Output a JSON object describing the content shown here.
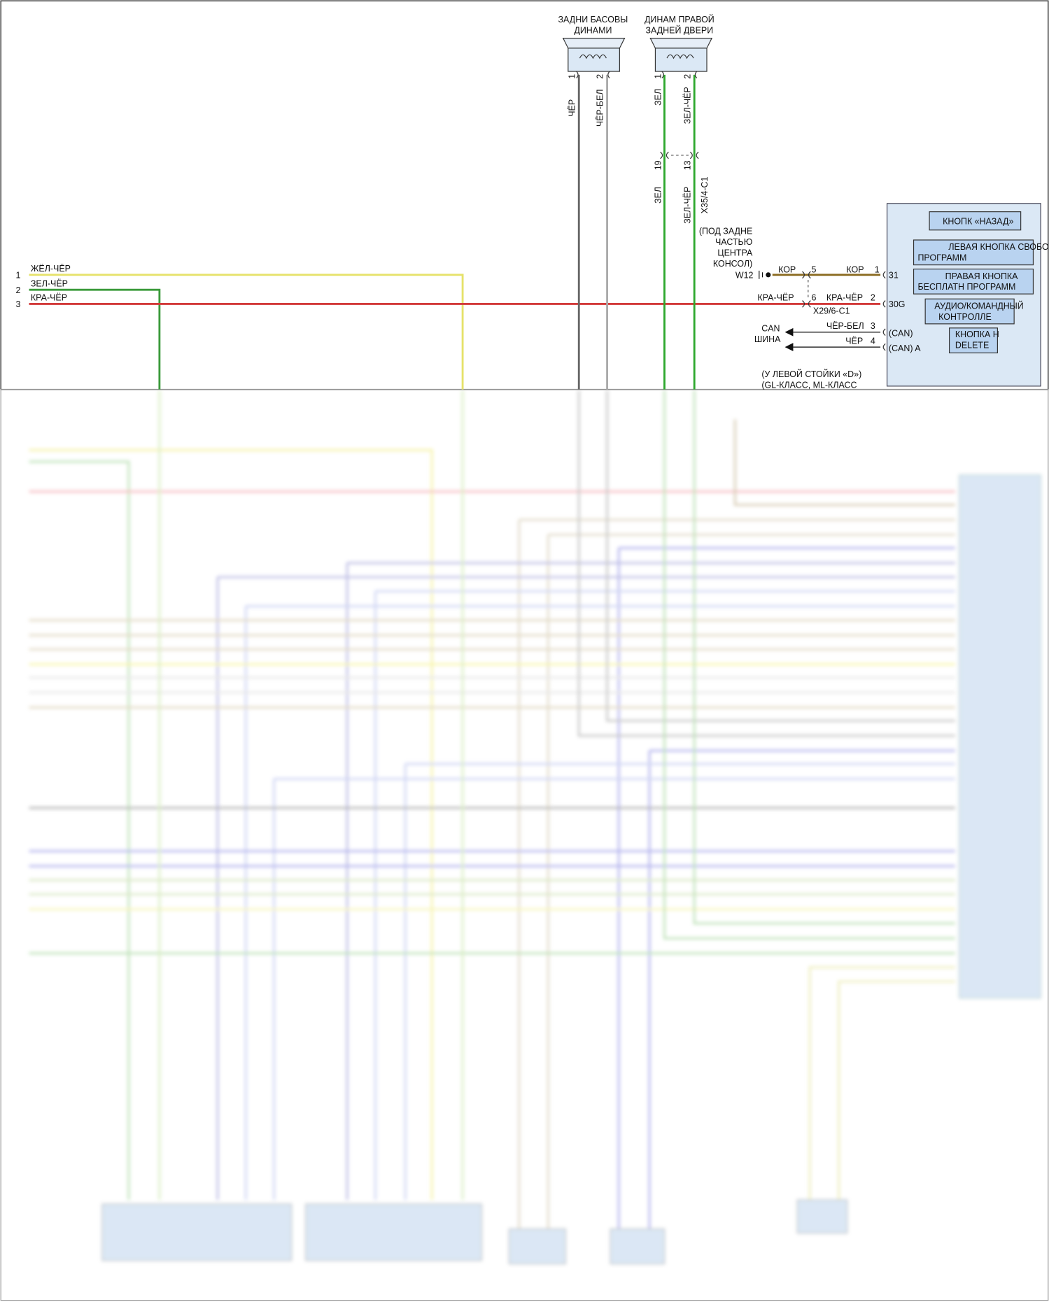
{
  "speakers": [
    {
      "title": [
        "ЗАДНИ БАСОВЫ",
        "ДИНАМИ"
      ],
      "pins": [
        "1",
        "2"
      ],
      "wires": [
        "ЧЁР",
        "ЧЁР-БЕЛ"
      ]
    },
    {
      "title": [
        "ДИНАМ ПРАВОЙ",
        "ЗАДНЕЙ ДВЕРИ"
      ],
      "pins": [
        "1",
        "2"
      ],
      "wires": [
        "ЗЕЛ",
        "ЗЕЛ-ЧЁР"
      ]
    }
  ],
  "connector_x35": {
    "name": "X35/4-C1",
    "pins": [
      "19",
      "13"
    ],
    "wires": [
      "ЗЕЛ",
      "ЗЕЛ-ЧЁР"
    ]
  },
  "left_wires": [
    {
      "pin": "1",
      "label": "ЖЁЛ-ЧЁР"
    },
    {
      "pin": "2",
      "label": "ЗЕЛ-ЧЁР"
    },
    {
      "pin": "3",
      "label": "КРА-ЧЁР"
    }
  ],
  "ground": {
    "note": [
      "(ПОД ЗАДНЕ",
      "ЧАСТЬЮ",
      "ЦЕНТРА",
      "КОНСОЛ)"
    ],
    "name": "W12"
  },
  "connector_x29": {
    "name": "X29/6-C1",
    "rows": [
      {
        "wire_in": "КОР",
        "pin_in": "5",
        "wire_out": "КОР",
        "pin_out": "1",
        "terminal": "31"
      },
      {
        "wire_in": "КРА-ЧЁР",
        "pin_in": "6",
        "wire_out": "КРА-ЧЁР",
        "pin_out": "2",
        "terminal": "30G"
      }
    ]
  },
  "can": {
    "label": [
      "CAN",
      "ШИНА"
    ],
    "rows": [
      {
        "wire": "ЧЁР-БЕЛ",
        "pin": "3",
        "terminal": "(CAN)"
      },
      {
        "wire": "ЧЁР",
        "pin": "4",
        "terminal": "(CAN) A"
      }
    ]
  },
  "location_note": [
    "(У ЛЕВОЙ СТОЙКИ «D»)",
    "(GL-КЛАСС, ML-КЛАСС"
  ],
  "module_buttons": [
    [
      "КНОПК «НАЗАД»"
    ],
    [
      "ЛЕВАЯ КНОПКА СВОБО",
      "ПРОГРАММ"
    ],
    [
      "ПРАВАЯ КНОПКА",
      "БЕСПЛАТН ПРОГРАММ"
    ],
    [
      "АУДИО/КОМАНДНЫЙ",
      "КОНТРОЛЛЕ"
    ],
    [
      "КНОПКА Н",
      "DELETE"
    ]
  ]
}
